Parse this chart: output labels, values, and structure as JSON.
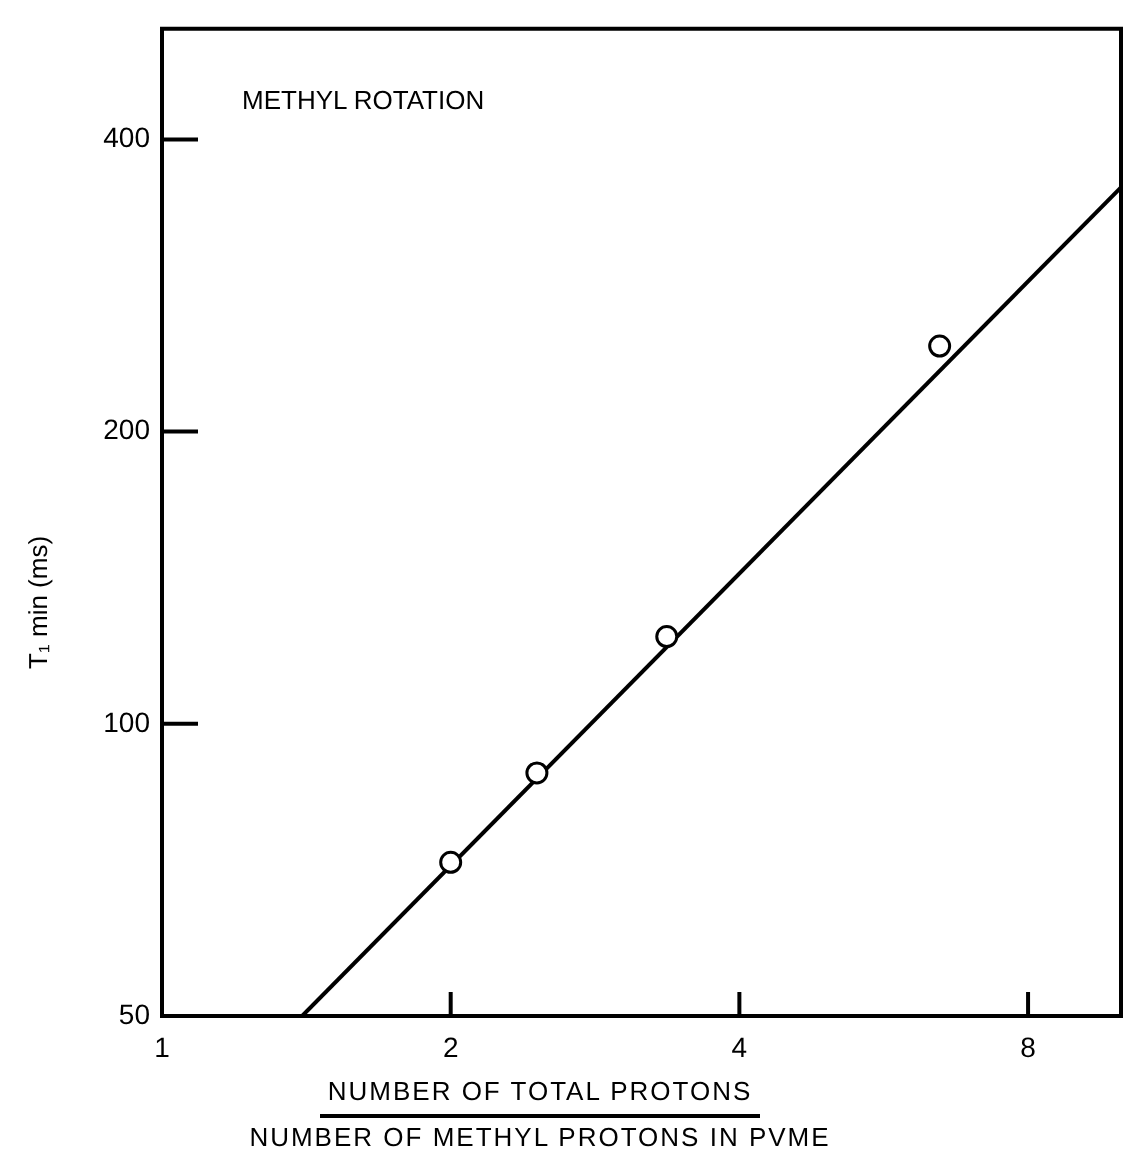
{
  "chart_data": {
    "type": "scatter",
    "xlabel": "NUMBER OF TOTAL PROTONS\nNUMBER OF METHYL PROTONS IN PVME",
    "ylabel": "T₁ min (ms)",
    "annotations": [
      "METHYL ROTATION"
    ],
    "log": "xy",
    "xlim": [
      1,
      10
    ],
    "ylim": [
      50,
      520
    ],
    "xticks": [
      1,
      2,
      4,
      8
    ],
    "yticks": [
      50,
      100,
      200,
      400
    ],
    "grid": false,
    "legend": false,
    "marker": "circle",
    "series": [
      {
        "color": "#000000",
        "x": [
          2,
          2.46,
          3.36,
          6.47
        ],
        "values": [
          72,
          89,
          123,
          245
        ]
      },
      {
        "type": "line",
        "color": "#000000",
        "x": [
          1.4,
          10
        ],
        "values": [
          50,
          357
        ],
        "marker": "none"
      }
    ]
  }
}
